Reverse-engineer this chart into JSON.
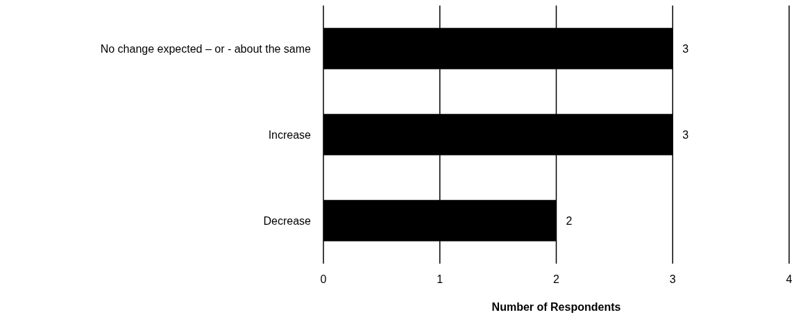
{
  "chart_data": {
    "type": "bar",
    "orientation": "horizontal",
    "categories": [
      "No change expected – or - about the same",
      "Increase",
      "Decrease"
    ],
    "values": [
      3,
      3,
      2
    ],
    "color": "#000000",
    "xlabel": "Number of Respondents",
    "xlim": [
      0,
      4
    ],
    "xticks": [
      0,
      1,
      2,
      3,
      4
    ],
    "grid": "x",
    "data_labels": true
  }
}
